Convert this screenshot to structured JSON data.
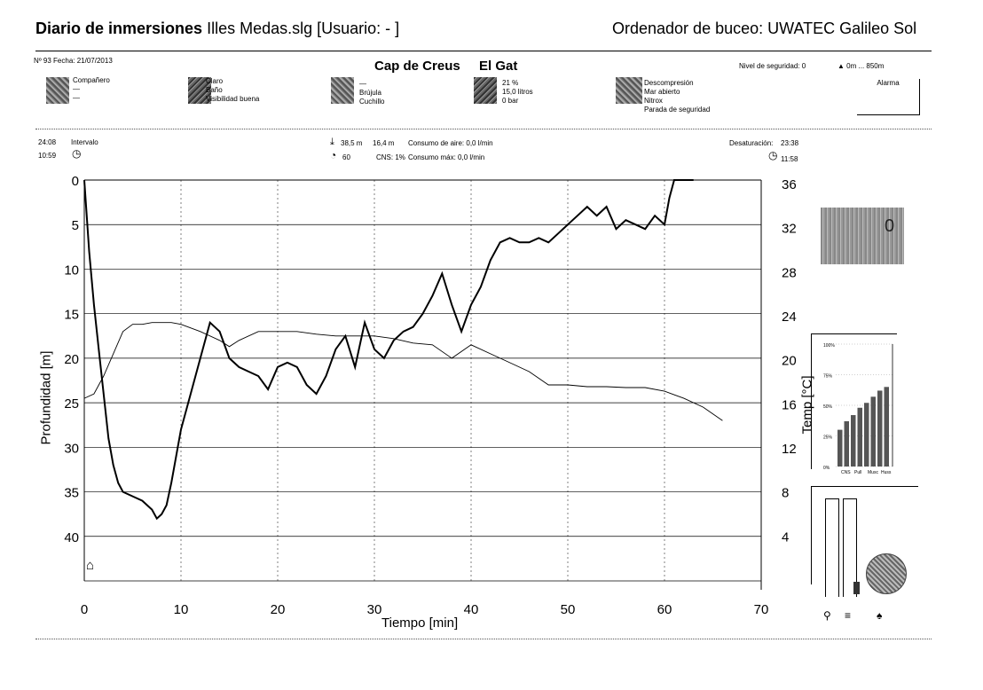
{
  "header": {
    "title_bold": "Diario de inmersiones",
    "title_rest": "Illes Medas.slg  [Usuario:  - ]",
    "computer": "Ordenador de buceo: UWATEC Galileo Sol"
  },
  "dive_info": {
    "number_date": "Nº 93   Fecha:  21/07/2013",
    "site": "Cap de Creus",
    "spot": "El Gat",
    "safety_level": "Nivel de seguridad: 0",
    "altitude": "0m ... 850m",
    "alarm": "Alarma"
  },
  "info_groups": {
    "buddy": [
      "Compañero",
      "—",
      "—"
    ],
    "conditions": [
      "Claro",
      "Baño",
      "Visibilidad buena"
    ],
    "equipment": [
      "—",
      "Brújula",
      "Cuchillo"
    ],
    "gas": [
      "21 %",
      "15,0 litros",
      "0 bar"
    ],
    "dive_type": [
      "Descompresión",
      "Mar abierto",
      "Nitrox",
      "Parada de seguridad"
    ]
  },
  "stats": {
    "duration": "24:08",
    "time": "10:59",
    "interval_label": "Intervalo",
    "max_depth": "38,5 m",
    "avg_depth": "16,4 m",
    "air_consumption": "Consumo de aire:  0,0 l/min",
    "max_time": "60",
    "cns": "CNS: 1%",
    "max_consumption": "Consumo máx:  0,0 l/min",
    "desaturation_label": "Desaturación:",
    "desaturation": "23:38",
    "nofly": "11:58"
  },
  "chart_data": {
    "type": "line",
    "xlabel": "Tiempo [min]",
    "ylabel": "Profundidad [m]",
    "y2label": "Temp [°C]",
    "xlim": [
      0,
      70
    ],
    "ylim": [
      45,
      0
    ],
    "y2lim": [
      0,
      36
    ],
    "xticks": [
      "0",
      "10",
      "20",
      "30",
      "40",
      "50",
      "60",
      "70"
    ],
    "yticks": [
      "0",
      "5",
      "10",
      "15",
      "20",
      "25",
      "30",
      "35",
      "40"
    ],
    "y2ticks": [
      "36",
      "32",
      "28",
      "24",
      "20",
      "16",
      "12",
      "8",
      "4"
    ],
    "series": [
      {
        "x": [
          0,
          0.5,
          1,
          1.5,
          2,
          2.5,
          3,
          3.5,
          4,
          5,
          6,
          7,
          7.5,
          8,
          8.5,
          9,
          10,
          11,
          12,
          13,
          14,
          15,
          16,
          17,
          18,
          19,
          20,
          21,
          22,
          23,
          24,
          25,
          26,
          27,
          28,
          29,
          30,
          31,
          32,
          33,
          34,
          35,
          36,
          37,
          38,
          39,
          40,
          41,
          42,
          43,
          44,
          45,
          46,
          47,
          48,
          49,
          50,
          51,
          52,
          53,
          54,
          55,
          56,
          57,
          58,
          59,
          60,
          60.5,
          61,
          62,
          63
        ],
        "y": [
          0,
          8,
          14,
          19,
          24,
          29,
          32,
          34,
          35,
          35.5,
          36,
          37,
          38,
          37.5,
          36.5,
          34,
          28,
          24,
          20,
          16,
          17,
          20,
          21,
          21.5,
          22,
          23.5,
          21,
          20.5,
          21,
          23,
          24,
          22,
          19,
          17.5,
          21,
          16,
          19,
          20,
          18,
          17,
          16.5,
          15,
          13,
          10.5,
          14,
          17,
          14,
          12,
          9,
          7,
          6.5,
          7,
          7,
          6.5,
          7,
          6,
          5,
          4,
          3,
          4,
          3,
          5.5,
          4.5,
          5,
          5.5,
          4,
          5,
          2,
          0,
          0,
          0
        ]
      },
      {
        "x": [
          0,
          1,
          2,
          3,
          4,
          5,
          6,
          7,
          8,
          9,
          10,
          12,
          14,
          15,
          16,
          18,
          20,
          22,
          24,
          26,
          28,
          30,
          32,
          34,
          36,
          38,
          40,
          42,
          44,
          46,
          48,
          50,
          52,
          54,
          56,
          58,
          60,
          62,
          64,
          66
        ],
        "y": [
          24.5,
          24,
          22,
          19.5,
          17,
          16.2,
          16.2,
          16,
          16,
          16,
          16.2,
          17,
          18,
          18.7,
          18,
          17,
          17,
          17,
          17.3,
          17.5,
          17.5,
          17.5,
          17.8,
          18.3,
          18.5,
          20,
          18.5,
          19.5,
          20.5,
          21.5,
          23,
          23,
          23.2,
          23.2,
          23.3,
          23.3,
          23.7,
          24.5,
          25.5,
          27
        ]
      }
    ]
  },
  "gas_chart": {
    "ticks": [
      "100%",
      "75%",
      "50%",
      "25%",
      "0%"
    ],
    "labels": [
      "CNS",
      "Pull",
      "Musc",
      "Huss"
    ],
    "bars": [
      0.3,
      0.37,
      0.42,
      0.48,
      0.52,
      0.57,
      0.62,
      0.65
    ]
  },
  "current_temp": "0"
}
